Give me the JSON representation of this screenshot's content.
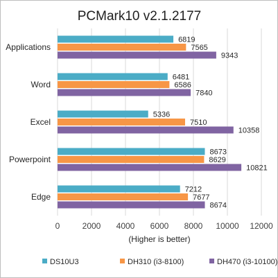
{
  "chart_data": {
    "type": "bar",
    "orientation": "horizontal",
    "title": "PCMark10 v2.1.2177",
    "xlabel": "(Higher is better)",
    "ylabel": "",
    "categories": [
      "Applications",
      "Word",
      "Excel",
      "Powerpoint",
      "Edge"
    ],
    "series": [
      {
        "name": "DS10U3",
        "color": "#4bacc6",
        "values": [
          6819,
          6481,
          5336,
          8673,
          7212
        ]
      },
      {
        "name": "DH310 (i3-8100)",
        "color": "#f79646",
        "values": [
          7565,
          6586,
          7510,
          8629,
          7677
        ]
      },
      {
        "name": "DH470 (i3-10100)",
        "color": "#8064a2",
        "values": [
          9343,
          7840,
          10358,
          10821,
          8674
        ]
      }
    ],
    "xlim": [
      0,
      12000
    ],
    "xticks": [
      0,
      2000,
      4000,
      6000,
      8000,
      10000,
      12000
    ],
    "grid": "vertical",
    "legend": "bottom"
  }
}
